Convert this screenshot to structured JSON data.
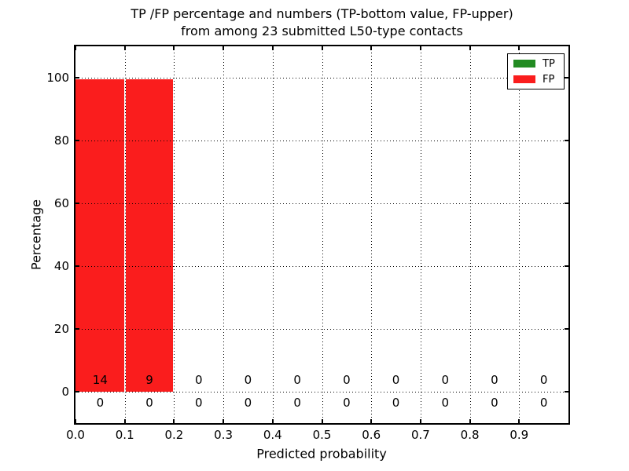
{
  "figure": {
    "background": "#ffffff",
    "text_color": "#000000"
  },
  "chart_data": {
    "type": "bar",
    "title_line1": "TP /FP percentage and numbers (TP-bottom value, FP-upper)",
    "title_line2": "from among 23 submitted L50-type contacts",
    "xlabel": "Predicted probability",
    "ylabel": "Percentage",
    "xlim": [
      0.0,
      1.0
    ],
    "ylim": [
      -10,
      110
    ],
    "grid": "dotted",
    "x_tick_values": [
      0.0,
      0.1,
      0.2,
      0.3,
      0.4,
      0.5,
      0.6,
      0.7,
      0.8,
      0.9
    ],
    "x_tick_labels": [
      "0.0",
      "0.1",
      "0.2",
      "0.3",
      "0.4",
      "0.5",
      "0.6",
      "0.7",
      "0.8",
      "0.9"
    ],
    "y_tick_values": [
      0,
      20,
      40,
      60,
      80,
      100
    ],
    "y_tick_labels": [
      "0",
      "20",
      "40",
      "60",
      "80",
      "100"
    ],
    "bin_edges": [
      0.0,
      0.1,
      0.2,
      0.3,
      0.4,
      0.5,
      0.6,
      0.7,
      0.8,
      0.9,
      1.0
    ],
    "series": [
      {
        "name": "TP",
        "color": "#228b22",
        "counts": [
          0,
          0,
          0,
          0,
          0,
          0,
          0,
          0,
          0,
          0
        ],
        "percent": [
          0,
          0,
          0,
          0,
          0,
          0,
          0,
          0,
          0,
          0
        ]
      },
      {
        "name": "FP",
        "color": "#fa1d1d",
        "counts": [
          14,
          9,
          0,
          0,
          0,
          0,
          0,
          0,
          0,
          0
        ],
        "percent": [
          100,
          100,
          0,
          0,
          0,
          0,
          0,
          0,
          0,
          0
        ]
      }
    ],
    "legend": {
      "position": "upper-right",
      "entries": [
        {
          "label": "TP",
          "color": "#228b22"
        },
        {
          "label": "FP",
          "color": "#fa1d1d"
        }
      ]
    }
  }
}
